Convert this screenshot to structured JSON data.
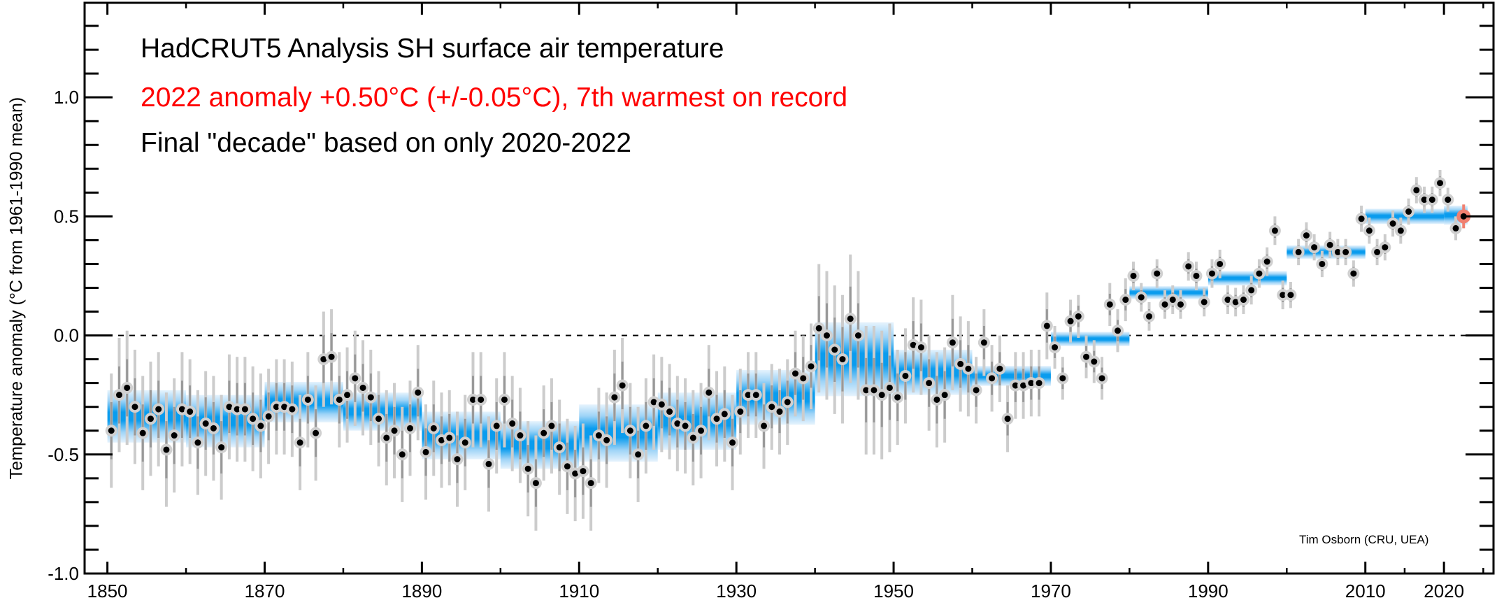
{
  "chart_data": {
    "type": "scatter",
    "title": "HadCRUT5 Analysis SH surface air temperature",
    "subtitle": "2022 anomaly +0.50°C (+/-0.05°C), 7th warmest on record",
    "note": "Final \"decade\" based on only 2020-2022",
    "credit": "Tim Osborn (CRU, UEA)",
    "xlabel": "",
    "ylabel": "Temperature anomaly (°C from 1961-1990 mean)",
    "xlim": [
      1847.1,
      2026.3
    ],
    "ylim": [
      -1.0,
      1.397
    ],
    "grid": false,
    "reference_line": {
      "value": 0.0,
      "style": "dashed"
    },
    "x_ticks": {
      "major": [
        1850,
        1870,
        1890,
        1910,
        1930,
        1950,
        1970,
        1990,
        2010,
        2020
      ],
      "minor": [
        1860,
        1880,
        1900,
        1920,
        1940,
        1960,
        1980,
        2000,
        2015,
        2025
      ],
      "labels": [
        "1850",
        "1870",
        "1890",
        "1910",
        "1930",
        "1950",
        "1970",
        "1990",
        "2010",
        "2020"
      ]
    },
    "y_ticks": {
      "major": [
        -1.0,
        -0.5,
        0.0,
        0.5,
        1.0
      ],
      "labels": [
        "-1.0",
        "-0.5",
        "0.0",
        "0.5",
        "1.0"
      ],
      "minor_step": 0.1
    },
    "annual": {
      "start_year": 1850,
      "values": [
        -0.4,
        -0.25,
        -0.22,
        -0.3,
        -0.41,
        -0.35,
        -0.31,
        -0.48,
        -0.42,
        -0.31,
        -0.32,
        -0.45,
        -0.37,
        -0.39,
        -0.47,
        -0.3,
        -0.31,
        -0.31,
        -0.35,
        -0.38,
        -0.34,
        -0.3,
        -0.3,
        -0.31,
        -0.45,
        -0.27,
        -0.41,
        -0.1,
        -0.09,
        -0.27,
        -0.25,
        -0.18,
        -0.22,
        -0.26,
        -0.35,
        -0.43,
        -0.4,
        -0.5,
        -0.39,
        -0.24,
        -0.49,
        -0.39,
        -0.44,
        -0.43,
        -0.52,
        -0.45,
        -0.27,
        -0.27,
        -0.54,
        -0.38,
        -0.27,
        -0.37,
        -0.42,
        -0.56,
        -0.62,
        -0.41,
        -0.38,
        -0.47,
        -0.55,
        -0.58,
        -0.57,
        -0.62,
        -0.42,
        -0.44,
        -0.26,
        -0.21,
        -0.4,
        -0.5,
        -0.38,
        -0.28,
        -0.29,
        -0.32,
        -0.37,
        -0.38,
        -0.43,
        -0.4,
        -0.24,
        -0.35,
        -0.33,
        -0.45,
        -0.32,
        -0.25,
        -0.25,
        -0.38,
        -0.3,
        -0.32,
        -0.28,
        -0.16,
        -0.18,
        -0.13,
        0.03,
        0.0,
        -0.06,
        -0.1,
        0.07,
        0.0,
        -0.23,
        -0.23,
        -0.25,
        -0.22,
        -0.26,
        -0.17,
        -0.04,
        -0.05,
        -0.2,
        -0.27,
        -0.25,
        -0.03,
        -0.12,
        -0.14,
        -0.23,
        -0.03,
        -0.18,
        -0.14,
        -0.35,
        -0.21,
        -0.21,
        -0.2,
        -0.2,
        0.04,
        -0.05,
        -0.18,
        0.06,
        0.08,
        -0.09,
        -0.11,
        -0.18,
        0.13,
        0.02,
        0.15,
        0.25,
        0.16,
        0.08,
        0.26,
        0.13,
        0.15,
        0.13,
        0.29,
        0.25,
        0.14,
        0.26,
        0.3,
        0.15,
        0.14,
        0.15,
        0.19,
        0.26,
        0.31,
        0.44,
        0.17,
        0.17,
        0.35,
        0.42,
        0.37,
        0.3,
        0.38,
        0.35,
        0.35,
        0.26,
        0.49,
        0.44,
        0.35,
        0.37,
        0.47,
        0.44,
        0.52,
        0.61,
        0.57,
        0.57,
        0.64,
        0.57,
        0.45,
        0.5
      ],
      "uncertainty_95_by_decade": [
        0.24,
        0.22,
        0.2,
        0.2,
        0.2,
        0.2,
        0.2,
        0.2,
        0.18,
        0.27,
        0.2,
        0.14,
        0.09,
        0.06,
        0.06,
        0.055,
        0.055,
        0.05
      ],
      "highlight": {
        "year": 2022,
        "value": 0.5,
        "uncertainty": 0.05,
        "color": "#ff0000"
      }
    },
    "decadal": [
      {
        "start": 1850,
        "end": 1860,
        "mean": -0.34,
        "uncertainty": 0.11
      },
      {
        "start": 1860,
        "end": 1870,
        "mean": -0.36,
        "uncertainty": 0.11
      },
      {
        "start": 1870,
        "end": 1880,
        "mean": -0.28,
        "uncertainty": 0.085
      },
      {
        "start": 1880,
        "end": 1890,
        "mean": -0.32,
        "uncertainty": 0.08
      },
      {
        "start": 1890,
        "end": 1900,
        "mean": -0.42,
        "uncertainty": 0.1
      },
      {
        "start": 1900,
        "end": 1910,
        "mean": -0.46,
        "uncertainty": 0.1
      },
      {
        "start": 1910,
        "end": 1920,
        "mean": -0.41,
        "uncertainty": 0.12
      },
      {
        "start": 1920,
        "end": 1930,
        "mean": -0.36,
        "uncertainty": 0.12
      },
      {
        "start": 1930,
        "end": 1940,
        "mean": -0.26,
        "uncertainty": 0.115
      },
      {
        "start": 1940,
        "end": 1950,
        "mean": -0.1,
        "uncertainty": 0.155
      },
      {
        "start": 1950,
        "end": 1960,
        "mean": -0.155,
        "uncertainty": 0.095
      },
      {
        "start": 1960,
        "end": 1970,
        "mean": -0.17,
        "uncertainty": 0.042
      },
      {
        "start": 1970,
        "end": 1980,
        "mean": -0.015,
        "uncertainty": 0.03
      },
      {
        "start": 1980,
        "end": 1990,
        "mean": 0.18,
        "uncertainty": 0.027
      },
      {
        "start": 1990,
        "end": 2000,
        "mean": 0.24,
        "uncertainty": 0.03
      },
      {
        "start": 2000,
        "end": 2010,
        "mean": 0.35,
        "uncertainty": 0.028
      },
      {
        "start": 2010,
        "end": 2020,
        "mean": 0.5,
        "uncertainty": 0.032
      },
      {
        "start": 2020,
        "end": 2023,
        "mean": 0.505,
        "uncertainty": 0.04
      }
    ],
    "colors": {
      "decadal_band_core": "#0099ee",
      "decadal_band_edge": "#e4f2fc",
      "marker": "#000000",
      "marker_halo": "#d0d0d0",
      "error_inner": "#999999",
      "error_outer": "#cccccc",
      "highlight_halo": "#f08070",
      "highlight_error": "#ff0000",
      "subtitle": "#ff0000"
    }
  }
}
